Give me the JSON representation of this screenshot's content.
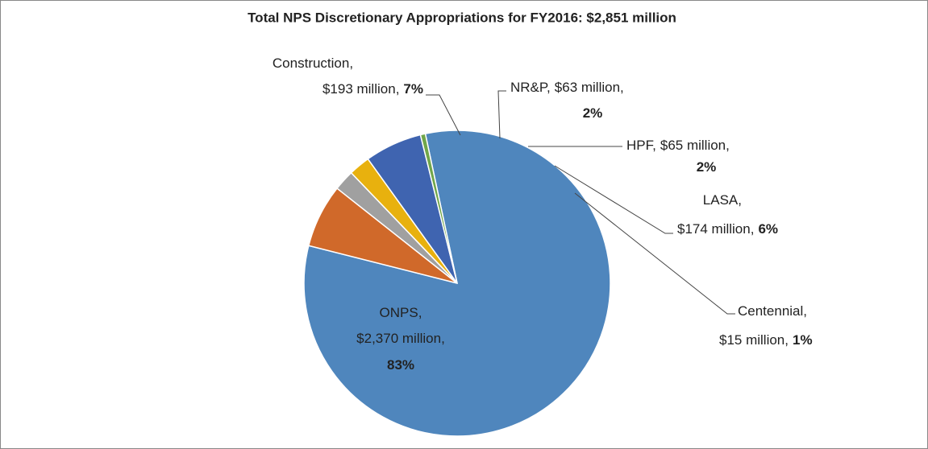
{
  "chart_data": {
    "type": "pie",
    "title": "Total NPS Discretionary Appropriations for FY2016: $2,851 million",
    "categories": [
      "ONPS",
      "Construction",
      "NR&P",
      "HPF",
      "LASA",
      "Centennial"
    ],
    "values": [
      2370,
      193,
      63,
      65,
      174,
      15
    ],
    "value_labels": [
      "$2,370 million",
      "$193 million",
      "$63 million",
      "$65 million",
      "$174 million",
      "$15 million"
    ],
    "percent_labels": [
      "83%",
      "7%",
      "2%",
      "2%",
      "6%",
      "1%"
    ],
    "separator": ",",
    "colors": [
      "#4f86bd",
      "#d0692a",
      "#a0a0a0",
      "#e8b10e",
      "#3f64b0",
      "#70a64a"
    ],
    "start_angle": -372
  }
}
